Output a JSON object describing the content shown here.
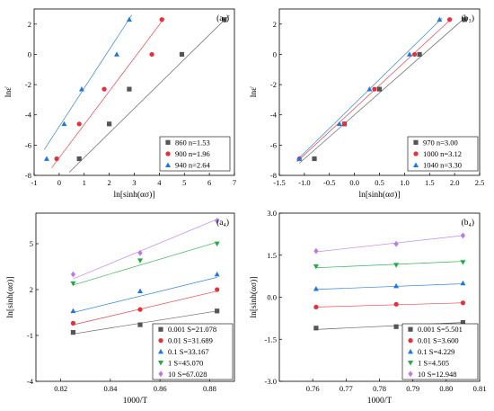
{
  "chart_data": [
    {
      "type": "scatter",
      "panel_label": "(a₃)",
      "xlabel": "ln[sinh(ασ)]",
      "ylabel": "lnε̇",
      "xlim": [
        -1,
        7
      ],
      "ylim": [
        -8,
        3
      ],
      "xticks": [
        -1,
        0,
        1,
        2,
        3,
        4,
        5,
        6,
        7
      ],
      "yticks": [
        -8,
        -6,
        -4,
        -2,
        0,
        2
      ],
      "legend_position": "bottom-right",
      "series": [
        {
          "name": "860 n=1.53",
          "marker": "square",
          "color": "#555555",
          "x": [
            0.8,
            2.0,
            2.8,
            4.9,
            6.6
          ],
          "y": [
            -6.9,
            -4.6,
            -2.3,
            0,
            2.3
          ],
          "fit": [
            [
              0.4,
              -7.8
            ],
            [
              6.8,
              2.6
            ]
          ]
        },
        {
          "name": "900 n=1.96",
          "marker": "circle",
          "color": "#e8303a",
          "x": [
            -0.1,
            0.8,
            1.8,
            3.7,
            4.1
          ],
          "y": [
            -6.9,
            -4.6,
            -2.3,
            0,
            2.3
          ],
          "fit": [
            [
              -0.3,
              -7.5
            ],
            [
              4.2,
              2.4
            ]
          ]
        },
        {
          "name": "940 n=2.64",
          "marker": "triangle",
          "color": "#1f77e0",
          "x": [
            -0.5,
            0.2,
            0.9,
            2.3,
            2.8
          ],
          "y": [
            -6.9,
            -4.6,
            -2.3,
            0,
            2.3
          ],
          "fit": [
            [
              -0.6,
              -6.3
            ],
            [
              2.9,
              2.6
            ]
          ]
        }
      ]
    },
    {
      "type": "scatter",
      "panel_label": "(b₃)",
      "xlabel": "ln[sinh(ασ)]",
      "ylabel": "lnε̇",
      "xlim": [
        -1.5,
        2.5
      ],
      "ylim": [
        -8,
        3
      ],
      "xticks": [
        -1.5,
        -1.0,
        -0.5,
        0.0,
        0.5,
        1.0,
        1.5,
        2.0,
        2.5
      ],
      "yticks": [
        -8,
        -6,
        -4,
        -2,
        0,
        2
      ],
      "legend_position": "bottom-right",
      "series": [
        {
          "name": "970 n=3.00",
          "marker": "square",
          "color": "#555555",
          "x": [
            -0.8,
            -0.2,
            0.5,
            1.3,
            2.2
          ],
          "y": [
            -6.9,
            -4.6,
            -2.3,
            0,
            2.3
          ],
          "fit": [
            [
              -1.1,
              -7.2
            ],
            [
              2.2,
              2.4
            ]
          ]
        },
        {
          "name": "1000 n=3.12",
          "marker": "circle",
          "color": "#e8303a",
          "x": [
            -1.1,
            -0.2,
            0.4,
            1.2,
            1.9
          ],
          "y": [
            -6.9,
            -4.6,
            -2.3,
            0,
            2.3
          ],
          "fit": [
            [
              -1.15,
              -7.1
            ],
            [
              1.95,
              2.4
            ]
          ]
        },
        {
          "name": "1040 n=3.30",
          "marker": "triangle",
          "color": "#1f77e0",
          "x": [
            -1.1,
            -0.3,
            0.3,
            1.1,
            1.7
          ],
          "y": [
            -6.9,
            -4.6,
            -2.3,
            0,
            2.3
          ],
          "fit": [
            [
              -1.15,
              -7.0
            ],
            [
              1.75,
              2.4
            ]
          ]
        }
      ]
    },
    {
      "type": "scatter",
      "panel_label": "(a₄)",
      "xlabel": "1000/T",
      "ylabel": "ln[sinh(ασ)]",
      "xlim": [
        0.81,
        0.89
      ],
      "ylim": [
        -4,
        7
      ],
      "xticks": [
        0.82,
        0.84,
        0.86,
        0.88
      ],
      "yticks": [
        -4,
        -1,
        2,
        5
      ],
      "legend_position": "bottom-right",
      "series": [
        {
          "name": "0.001 S=21.078",
          "marker": "square",
          "color": "#555555",
          "x": [
            0.825,
            0.852,
            0.883
          ],
          "y": [
            -0.8,
            -0.3,
            0.6
          ],
          "fit": [
            [
              0.825,
              -0.9
            ],
            [
              0.883,
              0.6
            ]
          ]
        },
        {
          "name": "0.01 S=31.689",
          "marker": "circle",
          "color": "#e8303a",
          "x": [
            0.825,
            0.852,
            0.883
          ],
          "y": [
            -0.2,
            0.7,
            2.0
          ],
          "fit": [
            [
              0.825,
              -0.3
            ],
            [
              0.883,
              1.9
            ]
          ]
        },
        {
          "name": "0.1 S=33.167",
          "marker": "triangle",
          "color": "#1f77e0",
          "x": [
            0.825,
            0.852,
            0.883
          ],
          "y": [
            0.6,
            1.9,
            3.0
          ],
          "fit": [
            [
              0.825,
              0.5
            ],
            [
              0.883,
              2.8
            ]
          ]
        },
        {
          "name": "1 S=45.070",
          "marker": "triangle-down",
          "color": "#22aa44",
          "x": [
            0.825,
            0.852,
            0.883
          ],
          "y": [
            2.4,
            3.9,
            5.0
          ],
          "fit": [
            [
              0.825,
              2.3
            ],
            [
              0.883,
              5.1
            ]
          ]
        },
        {
          "name": "10 S=67.028",
          "marker": "diamond",
          "color": "#bb77ee",
          "x": [
            0.825,
            0.852,
            0.883
          ],
          "y": [
            3.0,
            4.4,
            6.5
          ],
          "fit": [
            [
              0.825,
              2.7
            ],
            [
              0.883,
              6.6
            ]
          ]
        }
      ]
    },
    {
      "type": "scatter",
      "panel_label": "(b₄)",
      "xlabel": "1000/T",
      "ylabel": "ln[sinh(ασ)]",
      "xlim": [
        0.75,
        0.81
      ],
      "ylim": [
        -3.0,
        3.0
      ],
      "xticks": [
        0.76,
        0.77,
        0.78,
        0.79,
        0.8,
        0.81
      ],
      "yticks": [
        -3.0,
        -1.5,
        0.0,
        1.5,
        3.0
      ],
      "legend_position": "bottom-right",
      "series": [
        {
          "name": "0.001 S=5.501",
          "marker": "square",
          "color": "#555555",
          "x": [
            0.761,
            0.785,
            0.805
          ],
          "y": [
            -1.1,
            -1.05,
            -0.9
          ],
          "fit": [
            [
              0.761,
              -1.15
            ],
            [
              0.805,
              -0.9
            ]
          ]
        },
        {
          "name": "0.01 S=3.600",
          "marker": "circle",
          "color": "#e8303a",
          "x": [
            0.761,
            0.785,
            0.805
          ],
          "y": [
            -0.35,
            -0.25,
            -0.2
          ],
          "fit": [
            [
              0.761,
              -0.35
            ],
            [
              0.805,
              -0.2
            ]
          ]
        },
        {
          "name": "0.1 S=4.229",
          "marker": "triangle",
          "color": "#1f77e0",
          "x": [
            0.761,
            0.785,
            0.805
          ],
          "y": [
            0.3,
            0.4,
            0.5
          ],
          "fit": [
            [
              0.761,
              0.28
            ],
            [
              0.805,
              0.48
            ]
          ]
        },
        {
          "name": "1 S=4.505",
          "marker": "triangle-down",
          "color": "#22aa44",
          "x": [
            0.761,
            0.785,
            0.805
          ],
          "y": [
            1.1,
            1.15,
            1.25
          ],
          "fit": [
            [
              0.761,
              1.05
            ],
            [
              0.805,
              1.28
            ]
          ]
        },
        {
          "name": "10 S=12.948",
          "marker": "diamond",
          "color": "#bb77ee",
          "x": [
            0.761,
            0.785,
            0.805
          ],
          "y": [
            1.65,
            1.9,
            2.2
          ],
          "fit": [
            [
              0.761,
              1.62
            ],
            [
              0.805,
              2.2
            ]
          ]
        }
      ]
    }
  ]
}
